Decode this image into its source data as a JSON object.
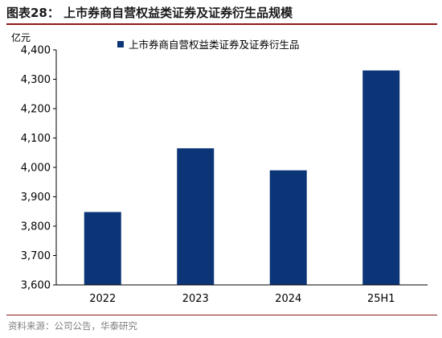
{
  "figure": {
    "title": "图表28：  上市券商自营权益类证券及证券衍生品规模",
    "unit": "亿元",
    "source": "资料来源：公司公告，华泰研究"
  },
  "chart_data": {
    "type": "bar",
    "categories": [
      "2022",
      "2023",
      "2024",
      "25H1"
    ],
    "series": [
      {
        "name": "上市券商自营权益类证券及证券衍生品",
        "values": [
          3848,
          4065,
          3990,
          4330
        ]
      }
    ],
    "ylim": [
      3600,
      4400
    ],
    "yticks": [
      "3,600",
      "3,700",
      "3,800",
      "3,900",
      "4,000",
      "4,100",
      "4,200",
      "4,300",
      "4,400"
    ],
    "legend_position": "top-left",
    "grid": false,
    "bar_color": "#0b3577"
  }
}
